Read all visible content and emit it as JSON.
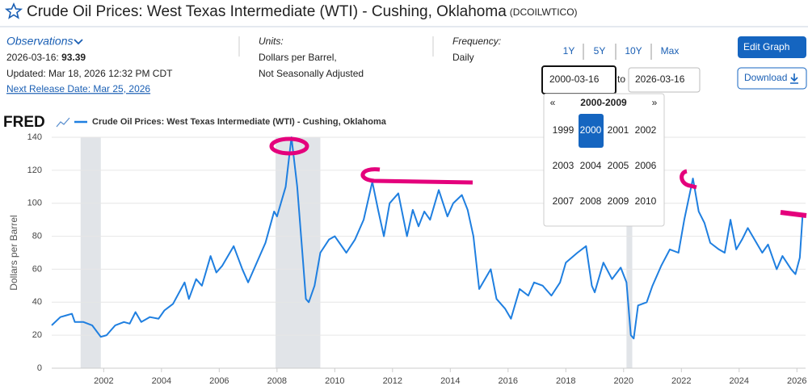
{
  "header": {
    "title": "Crude Oil Prices: West Texas Intermediate (WTI) - Cushing, Oklahoma",
    "series_id": "(DCOILWTICO)"
  },
  "observations": {
    "label": "Observations",
    "date": "2026-03-16:",
    "value": 93.39,
    "updated": "Updated: Mar 18, 2026 12:32 PM CDT",
    "next_release": "Next Release Date: Mar 25, 2026"
  },
  "units": {
    "label": "Units:",
    "lines": [
      "Dollars per Barrel,",
      "Not Seasonally Adjusted"
    ]
  },
  "frequency": {
    "label": "Frequency:",
    "value": "Daily"
  },
  "ranges": [
    "1Y",
    "5Y",
    "10Y",
    "Max"
  ],
  "date_range": {
    "start": "2000-03-16",
    "separator": "to",
    "end": "2026-03-16"
  },
  "buttons": {
    "edit": "Edit Graph",
    "download": "Download"
  },
  "datepicker": {
    "prev": "«",
    "decade": "2000-2009",
    "next": "»",
    "years": [
      "1999",
      "2000",
      "2001",
      "2002",
      "2003",
      "2004",
      "2005",
      "2006",
      "2007",
      "2008",
      "2009",
      "2010"
    ],
    "selected": 1
  },
  "chart_data": {
    "type": "line",
    "logo": "FRED",
    "ylabel": "Dollars per Barrel",
    "grid": true,
    "xlim": [
      2000.2,
      2026.3
    ],
    "ylim": [
      0,
      140
    ],
    "xticks": [
      2002,
      2004,
      2006,
      2008,
      2010,
      2012,
      2014,
      2016,
      2018,
      2020,
      2022,
      2024,
      2026
    ],
    "yticks": [
      0,
      20,
      40,
      60,
      80,
      100,
      120,
      140
    ],
    "recessions": [
      [
        2001.2,
        2001.9
      ],
      [
        2007.95,
        2009.5
      ],
      [
        2020.1,
        2020.3
      ]
    ],
    "x": [
      2000.2,
      2000.5,
      2000.7,
      2000.9,
      2001.0,
      2001.3,
      2001.6,
      2001.9,
      2002.1,
      2002.4,
      2002.7,
      2002.9,
      2003.1,
      2003.3,
      2003.6,
      2003.9,
      2004.1,
      2004.4,
      2004.8,
      2004.95,
      2005.2,
      2005.4,
      2005.7,
      2005.9,
      2006.1,
      2006.5,
      2006.8,
      2007.0,
      2007.3,
      2007.6,
      2007.9,
      2008.0,
      2008.3,
      2008.5,
      2008.7,
      2008.9,
      2009.0,
      2009.1,
      2009.3,
      2009.5,
      2009.8,
      2010.0,
      2010.4,
      2010.7,
      2011.0,
      2011.3,
      2011.5,
      2011.7,
      2011.9,
      2012.2,
      2012.5,
      2012.7,
      2012.9,
      2013.1,
      2013.3,
      2013.6,
      2013.9,
      2014.1,
      2014.4,
      2014.6,
      2014.8,
      2015.0,
      2015.4,
      2015.6,
      2015.9,
      2016.1,
      2016.4,
      2016.7,
      2016.9,
      2017.2,
      2017.5,
      2017.8,
      2018.0,
      2018.4,
      2018.7,
      2018.9,
      2019.0,
      2019.3,
      2019.6,
      2019.9,
      2020.1,
      2020.25,
      2020.35,
      2020.5,
      2020.8,
      2021.0,
      2021.3,
      2021.6,
      2021.9,
      2022.1,
      2022.4,
      2022.6,
      2022.8,
      2023.0,
      2023.3,
      2023.5,
      2023.7,
      2023.9,
      2024.1,
      2024.3,
      2024.6,
      2024.8,
      2025.0,
      2025.3,
      2025.5,
      2025.8,
      2025.95,
      2026.1,
      2026.2
    ],
    "series": [
      {
        "name": "Crude Oil Prices: West Texas Intermediate (WTI) - Cushing, Oklahoma",
        "color": "#1f7fe0",
        "values": [
          26,
          31,
          32,
          33,
          28,
          28,
          26,
          19,
          20,
          26,
          28,
          27,
          34,
          28,
          31,
          30,
          35,
          39,
          52,
          42,
          54,
          50,
          68,
          58,
          62,
          74,
          60,
          52,
          64,
          76,
          95,
          92,
          110,
          140,
          110,
          65,
          42,
          40,
          50,
          70,
          78,
          80,
          70,
          78,
          90,
          113,
          96,
          80,
          100,
          106,
          80,
          96,
          86,
          95,
          90,
          108,
          92,
          100,
          105,
          96,
          80,
          48,
          60,
          42,
          36,
          30,
          48,
          44,
          52,
          50,
          44,
          52,
          64,
          70,
          74,
          50,
          46,
          64,
          54,
          61,
          52,
          20,
          18,
          38,
          40,
          50,
          62,
          72,
          70,
          90,
          115,
          95,
          88,
          76,
          72,
          70,
          90,
          72,
          78,
          85,
          76,
          70,
          75,
          60,
          68,
          60,
          57,
          67,
          93.39
        ]
      }
    ]
  }
}
